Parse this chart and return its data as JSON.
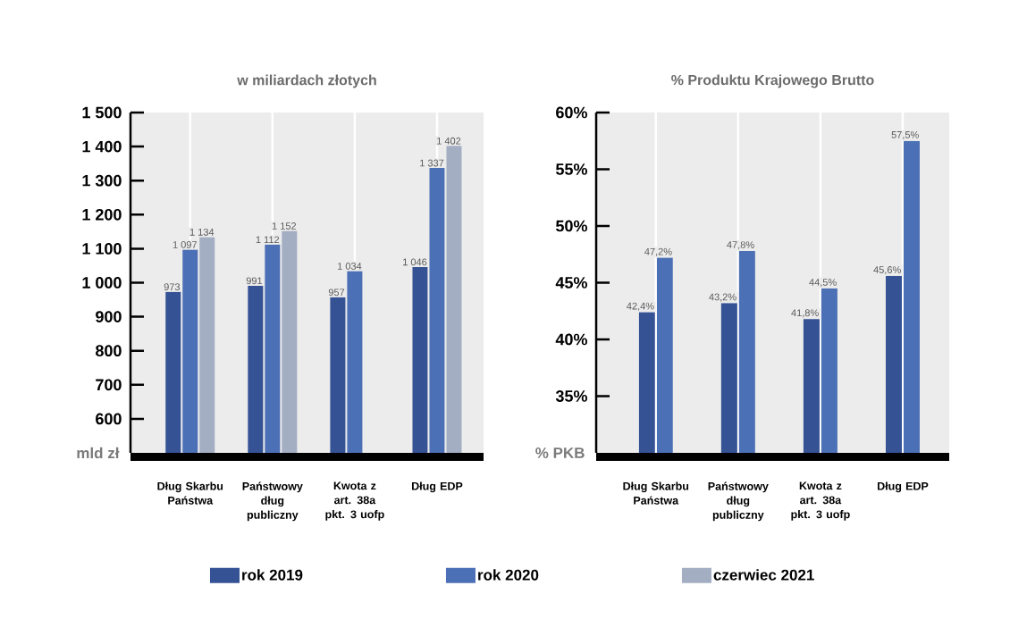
{
  "chart_data": [
    {
      "type": "bar",
      "title": "w miliardach złotych",
      "ylabel": "mld zł",
      "categories": [
        "Dług Skarbu Państwa",
        "Państwowy dług publiczny",
        "Kwota z art. 38a pkt. 3 uofp",
        "Dług EDP"
      ],
      "series": [
        {
          "name": "rok 2019",
          "color": "#345294",
          "values": [
            973,
            991,
            957,
            1046
          ],
          "value_labels": [
            "973",
            "991",
            "957",
            "1 046"
          ]
        },
        {
          "name": "rok 2020",
          "color": "#4c70b5",
          "values": [
            1097,
            1112,
            1034,
            1337
          ],
          "value_labels": [
            "1 097",
            "1 112",
            "1 034",
            "1 337"
          ]
        },
        {
          "name": "czerwiec 2021",
          "color": "#a3aec3",
          "values": [
            1134,
            1152,
            null,
            1402
          ],
          "value_labels": [
            "1 134",
            "1 152",
            null,
            "1 402"
          ]
        }
      ],
      "ylim": [
        500,
        1500
      ],
      "yticks": [
        600,
        700,
        800,
        900,
        {
          "value": 1000,
          "label": "1 000"
        },
        {
          "value": 1100,
          "label": "1 100"
        },
        {
          "value": 1200,
          "label": "1 200"
        },
        {
          "value": 1300,
          "label": "1 300"
        },
        {
          "value": 1400,
          "label": "1 400"
        },
        {
          "value": 1500,
          "label": "1 500"
        }
      ],
      "grid": "x",
      "legend": "bottom"
    },
    {
      "type": "bar",
      "title": "% Produktu Krajowego Brutto",
      "ylabel": "% PKB",
      "categories": [
        "Dług Skarbu Państwa",
        "Państwowy dług publiczny",
        "Kwota z art. 38a pkt. 3 uofp",
        "Dług EDP"
      ],
      "series": [
        {
          "color": "#345294",
          "values": [
            42.4,
            43.2,
            41.8,
            45.6
          ],
          "value_labels": [
            "42,4%",
            "43,2%",
            "41,8%",
            "45,6%"
          ]
        },
        {
          "color": "#4c70b5",
          "values": [
            47.2,
            47.8,
            44.5,
            57.5
          ],
          "value_labels": [
            "47,2%",
            "47,8%",
            "44,5%",
            "57,5%"
          ]
        }
      ],
      "ylim": [
        30,
        60
      ],
      "yticks": [
        {
          "value": 35,
          "label": "35%"
        },
        {
          "value": 40,
          "label": "40%"
        },
        {
          "value": 45,
          "label": "45%"
        },
        {
          "value": 50,
          "label": "50%"
        },
        {
          "value": 55,
          "label": "55%"
        },
        {
          "value": 60,
          "label": "60%"
        }
      ],
      "grid": "x"
    }
  ]
}
